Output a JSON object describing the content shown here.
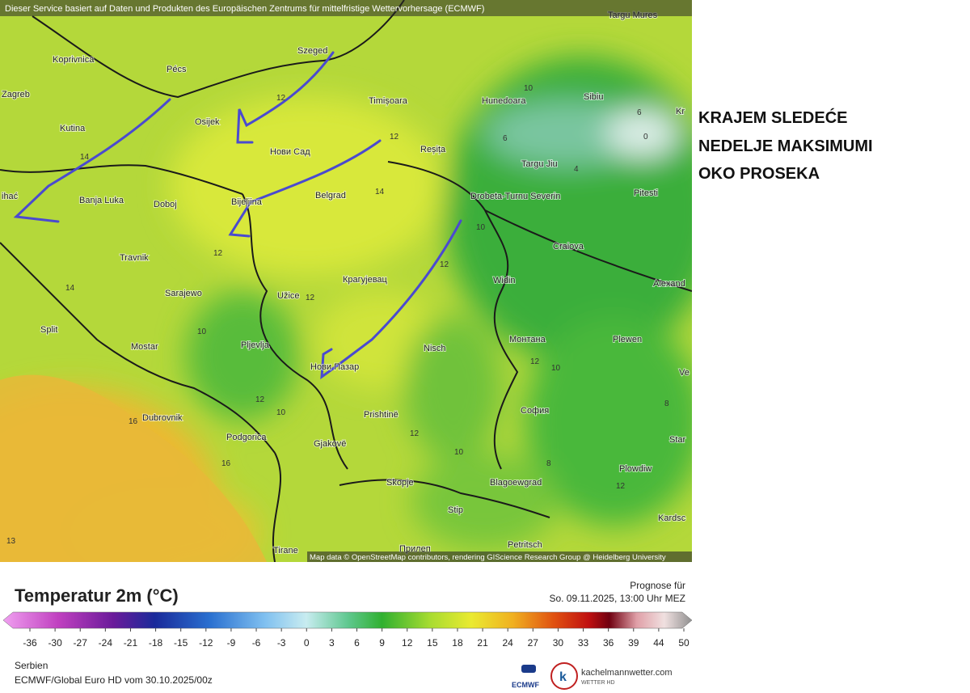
{
  "header": "Dieser Service basiert auf Daten und Produkten des Europäischen Zentrums für mittelfristige Wettervorhersage (ECMWF)",
  "headline": [
    "KRAJEM SLEDEĆE",
    "NEDELJE MAKSIMUMI",
    "OKO PROSEKA"
  ],
  "cities": [
    "Targu Mures",
    "Koprivnica",
    "Pécs",
    "Szeged",
    "Zagreb",
    "Osijek",
    "Timișoara",
    "Hunedoara",
    "Sibiu",
    "Kr",
    "Kutina",
    "Нови Сад",
    "Reșița",
    "Targu Jiu",
    "Pitesti",
    "Banja Luka",
    "Doboj",
    "Bijeljina",
    "Belgrad",
    "Drobeta-Turnu Severin",
    "Craiova",
    "Travnik",
    "Крагујевац",
    "Widin",
    "Alexand",
    "Sarajewo",
    "Užice",
    "Split",
    "Mostar",
    "Pljevlja",
    "Nisch",
    "Монтана",
    "Plewen",
    "Нови Пазар",
    "Ve",
    "София",
    "Dubrovnik",
    "Prishtinë",
    "Podgorica",
    "Gjakovë",
    "Star",
    "Plowdiw",
    "Skopje",
    "Blagoewgrad",
    "Stip",
    "Kardsc",
    "Petritsch",
    "Прилеп",
    "Tirane",
    "ihać"
  ],
  "isotherm_labels": [
    12,
    12,
    14,
    14,
    12,
    12,
    14,
    10,
    12,
    10,
    10,
    6,
    4,
    6,
    0,
    12,
    10,
    12,
    10,
    16,
    16,
    12,
    10,
    8,
    12,
    8,
    13
  ],
  "attribution": "Map data © OpenStreetMap contributors, rendering GIScience Research Group @ Heidelberg University",
  "legend": {
    "title": "Temperatur 2m (°C)",
    "ticks": [
      -36,
      -30,
      -27,
      -24,
      -21,
      -18,
      -15,
      -12,
      -9,
      -6,
      -3,
      0,
      3,
      6,
      9,
      12,
      15,
      18,
      21,
      24,
      27,
      30,
      33,
      36,
      39,
      44,
      50
    ]
  },
  "forecast_label": "Prognose für",
  "forecast_time": "So. 09.11.2025, 13:00 Uhr MEZ",
  "region": "Serbien",
  "model": "ECMWF/Global Euro HD vom  30.10.2025/00z",
  "logos": {
    "ecmwf": "ECMWF",
    "kachelmann": "kachelmannwetter.com",
    "kachelmann_sub": "WETTER HD"
  }
}
